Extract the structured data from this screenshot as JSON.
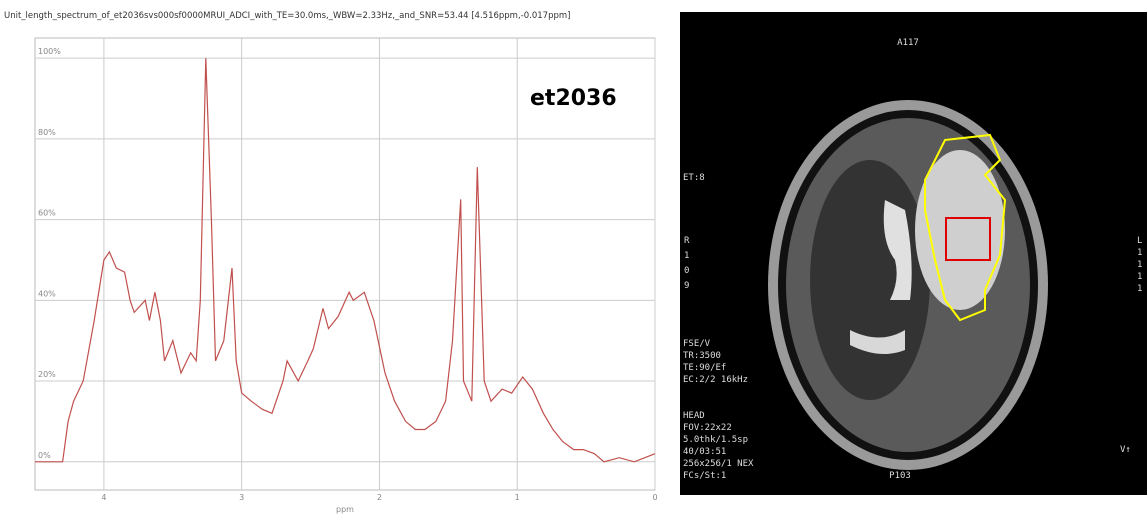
{
  "chart_data": {
    "type": "line",
    "title": "Unit_length_spectrum_of_et2036svs000sf0000MRUI_ADCI_with_TE=30.0ms,_WBW=2.33Hz,_and_SNR=53.44 [4.516ppm,-0.017ppm]",
    "annotation": "et2036",
    "x_label": "ppm",
    "color": "#c0504d",
    "grid": true,
    "xlim": [
      4.5,
      0
    ],
    "ylim": [
      -7,
      105
    ],
    "xticks": [
      4,
      3,
      2,
      1,
      0
    ],
    "yticks": [
      {
        "value": 0,
        "label": "0%"
      },
      {
        "value": 20,
        "label": "20%"
      },
      {
        "value": 40,
        "label": "40%"
      },
      {
        "value": 60,
        "label": "60%"
      },
      {
        "value": 80,
        "label": "80%"
      },
      {
        "value": 100,
        "label": "100%"
      }
    ],
    "x": [
      4.5,
      4.3,
      4.26,
      4.22,
      4.15,
      4.07,
      4.0,
      3.96,
      3.91,
      3.85,
      3.81,
      3.78,
      3.7,
      3.67,
      3.63,
      3.59,
      3.56,
      3.5,
      3.44,
      3.37,
      3.33,
      3.3,
      3.26,
      3.22,
      3.19,
      3.13,
      3.07,
      3.04,
      3.0,
      2.93,
      2.85,
      2.78,
      2.7,
      2.67,
      2.59,
      2.52,
      2.48,
      2.41,
      2.37,
      2.3,
      2.22,
      2.19,
      2.11,
      2.04,
      1.96,
      1.89,
      1.81,
      1.74,
      1.67,
      1.59,
      1.52,
      1.47,
      1.41,
      1.39,
      1.33,
      1.29,
      1.24,
      1.19,
      1.11,
      1.04,
      0.96,
      0.89,
      0.81,
      0.74,
      0.67,
      0.59,
      0.52,
      0.44,
      0.37,
      0.26,
      0.15,
      0.0
    ],
    "values": [
      0,
      0,
      10,
      15,
      20,
      35,
      50,
      52,
      48,
      47,
      40,
      37,
      40,
      35,
      42,
      35,
      25,
      30,
      22,
      27,
      25,
      40,
      100,
      60,
      25,
      30,
      48,
      25,
      17,
      15,
      13,
      12,
      20,
      25,
      20,
      25,
      28,
      38,
      33,
      36,
      42,
      40,
      42,
      35,
      22,
      15,
      10,
      8,
      8,
      10,
      15,
      30,
      65,
      20,
      15,
      73,
      20,
      15,
      18,
      17,
      21,
      18,
      12,
      8,
      5,
      3,
      3,
      2,
      0,
      1,
      0,
      2
    ]
  },
  "image": {
    "top_label": "A117",
    "bottom_label": "P103",
    "left_labels": [
      "ET:8",
      "R",
      "1",
      "0",
      "9"
    ],
    "scan_params": [
      "FSE/V",
      "TR:3500",
      "TE:90/Ef",
      "EC:2/2 16kHz"
    ],
    "head_params": [
      "HEAD",
      "FOV:22x22",
      "5.0thk/1.5sp",
      "40/03:51",
      "256x256/1 NEX",
      "FCs/St:1"
    ],
    "right_labels": [
      "L",
      "1",
      "1",
      "1",
      "1"
    ],
    "corner_label": "V↑"
  }
}
